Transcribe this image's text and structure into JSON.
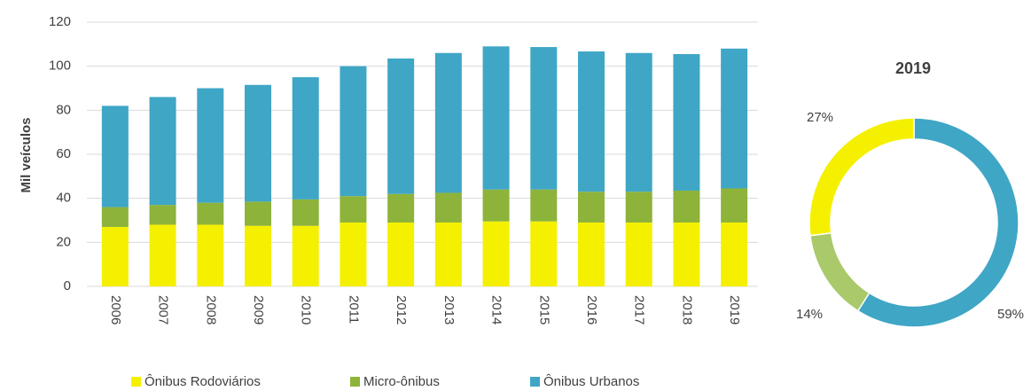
{
  "chart_data": [
    {
      "type": "bar",
      "stacked": true,
      "ylabel": "Mil veículos",
      "categories": [
        "2006",
        "2007",
        "2008",
        "2009",
        "2010",
        "2011",
        "2012",
        "2013",
        "2014",
        "2015",
        "2016",
        "2017",
        "2018",
        "2019"
      ],
      "series": [
        {
          "name": "Ônibus Rodoviários",
          "color": "#f5f000",
          "values": [
            27,
            28,
            28,
            27.5,
            27.5,
            29,
            29,
            29,
            29.5,
            29.5,
            29,
            29,
            29,
            29
          ]
        },
        {
          "name": "Micro-ônibus",
          "color": "#8db33a",
          "values": [
            9,
            9,
            10,
            11,
            12,
            12,
            13,
            13.5,
            14.5,
            14.5,
            14,
            14,
            14.5,
            15.5
          ]
        },
        {
          "name": "Ônibus Urbanos",
          "color": "#3fa6c6",
          "values": [
            46,
            49,
            52,
            53,
            55.5,
            59,
            61.5,
            63.5,
            65,
            64.7,
            63.7,
            63,
            62,
            63.5
          ]
        }
      ],
      "ylim": [
        0,
        120
      ],
      "yticks": [
        0,
        20,
        40,
        60,
        80,
        100,
        120
      ],
      "grid": true,
      "legend": "bottom"
    },
    {
      "type": "pie",
      "donut": true,
      "title": "2019",
      "values": [
        59,
        14,
        27
      ],
      "value_labels": [
        "59%",
        "14%",
        "27%"
      ],
      "colors": [
        "#3fa6c6",
        "#a9c96a",
        "#f5f000"
      ]
    }
  ]
}
